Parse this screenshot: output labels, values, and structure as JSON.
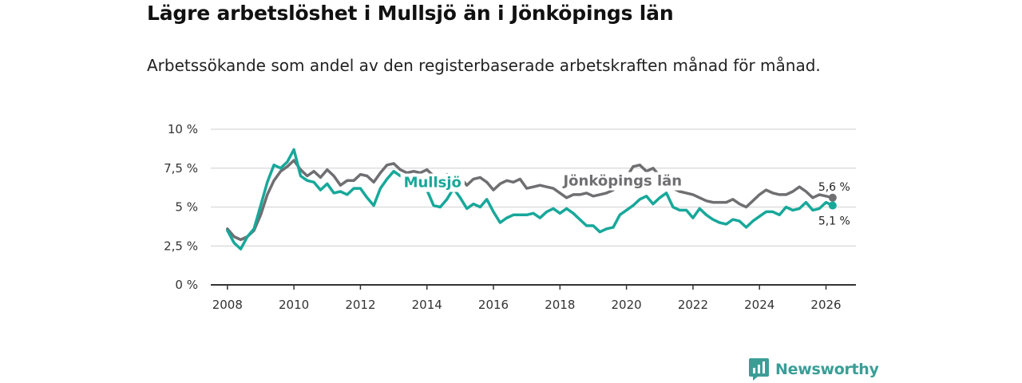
{
  "title": "Lägre arbetslöshet i Mullsjö än i Jönköpings län",
  "subtitle": "Arbetssökande som andel av den registerbaserade arbetskraften månad för månad.",
  "brand": "Newsworthy",
  "colors": {
    "lan": "#6f6f72",
    "mullsjo": "#17a89a",
    "grid": "#d8d8d8",
    "axis": "#333333",
    "brand": "#3a9e96"
  },
  "chart_data": {
    "type": "line",
    "title": "Lägre arbetslöshet i Mullsjö än i Jönköpings län",
    "xlabel": "",
    "ylabel": "",
    "xlim": [
      2007.5,
      2026.9
    ],
    "ylim": [
      0,
      10
    ],
    "y_ticks": [
      0,
      2.5,
      5,
      7.5,
      10
    ],
    "y_tick_labels": [
      "0 %",
      "2,5 %",
      "5 %",
      "7,5 %",
      "10 %"
    ],
    "x_ticks": [
      2008,
      2010,
      2012,
      2014,
      2016,
      2018,
      2020,
      2022,
      2024,
      2026
    ],
    "x_tick_labels": [
      "2008",
      "2010",
      "2012",
      "2014",
      "2016",
      "2018",
      "2020",
      "2022",
      "2024",
      "2026"
    ],
    "grid": true,
    "series": [
      {
        "name": "Jönköpings län",
        "color": "#6f6f72",
        "end_label": "5,6 %",
        "x": [
          2008.0,
          2008.2,
          2008.4,
          2008.6,
          2008.8,
          2009.0,
          2009.2,
          2009.4,
          2009.6,
          2009.8,
          2010.0,
          2010.2,
          2010.4,
          2010.6,
          2010.8,
          2011.0,
          2011.2,
          2011.4,
          2011.6,
          2011.8,
          2012.0,
          2012.2,
          2012.4,
          2012.6,
          2012.8,
          2013.0,
          2013.2,
          2013.4,
          2013.6,
          2013.8,
          2014.0,
          2014.2,
          2014.4,
          2014.6,
          2014.8,
          2015.0,
          2015.2,
          2015.4,
          2015.6,
          2015.8,
          2016.0,
          2016.2,
          2016.4,
          2016.6,
          2016.8,
          2017.0,
          2017.2,
          2017.4,
          2017.6,
          2017.8,
          2018.0,
          2018.2,
          2018.4,
          2018.6,
          2018.8,
          2019.0,
          2019.2,
          2019.4,
          2019.6,
          2019.8,
          2020.0,
          2020.2,
          2020.4,
          2020.6,
          2020.8,
          2021.0,
          2021.2,
          2021.4,
          2021.6,
          2021.8,
          2022.0,
          2022.2,
          2022.4,
          2022.6,
          2022.8,
          2023.0,
          2023.2,
          2023.4,
          2023.6,
          2023.8,
          2024.0,
          2024.2,
          2024.4,
          2024.6,
          2024.8,
          2025.0,
          2025.2,
          2025.4,
          2025.6,
          2025.8,
          2026.0,
          2026.2
        ],
        "values": [
          3.6,
          3.1,
          2.9,
          3.1,
          3.5,
          4.5,
          5.8,
          6.7,
          7.3,
          7.6,
          8.0,
          7.4,
          7.0,
          7.3,
          6.9,
          7.4,
          7.0,
          6.4,
          6.7,
          6.7,
          7.1,
          7.0,
          6.6,
          7.2,
          7.7,
          7.8,
          7.4,
          7.2,
          7.3,
          7.2,
          7.4,
          7.0,
          6.6,
          7.1,
          6.7,
          6.9,
          6.4,
          6.8,
          6.9,
          6.6,
          6.1,
          6.5,
          6.7,
          6.6,
          6.8,
          6.2,
          6.3,
          6.4,
          6.3,
          6.2,
          5.9,
          5.6,
          5.8,
          5.8,
          5.9,
          5.7,
          5.8,
          5.9,
          6.1,
          6.5,
          6.9,
          7.6,
          7.7,
          7.3,
          7.5,
          7.0,
          6.3,
          6.2,
          6.0,
          5.9,
          5.8,
          5.6,
          5.4,
          5.3,
          5.3,
          5.3,
          5.5,
          5.2,
          5.0,
          5.4,
          5.8,
          6.1,
          5.9,
          5.8,
          5.8,
          6.0,
          6.3,
          6.0,
          5.6,
          5.8,
          5.7,
          5.6
        ]
      },
      {
        "name": "Mullsjö",
        "color": "#17a89a",
        "end_label": "5,1 %",
        "x": [
          2008.0,
          2008.2,
          2008.4,
          2008.6,
          2008.8,
          2009.0,
          2009.2,
          2009.4,
          2009.6,
          2009.8,
          2010.0,
          2010.2,
          2010.4,
          2010.6,
          2010.8,
          2011.0,
          2011.2,
          2011.4,
          2011.6,
          2011.8,
          2012.0,
          2012.2,
          2012.4,
          2012.6,
          2012.8,
          2013.0,
          2013.2,
          2013.4,
          2013.6,
          2013.8,
          2014.0,
          2014.2,
          2014.4,
          2014.6,
          2014.8,
          2015.0,
          2015.2,
          2015.4,
          2015.6,
          2015.8,
          2016.0,
          2016.2,
          2016.4,
          2016.6,
          2016.8,
          2017.0,
          2017.2,
          2017.4,
          2017.6,
          2017.8,
          2018.0,
          2018.2,
          2018.4,
          2018.6,
          2018.8,
          2019.0,
          2019.2,
          2019.4,
          2019.6,
          2019.8,
          2020.0,
          2020.2,
          2020.4,
          2020.6,
          2020.8,
          2021.0,
          2021.2,
          2021.4,
          2021.6,
          2021.8,
          2022.0,
          2022.2,
          2022.4,
          2022.6,
          2022.8,
          2023.0,
          2023.2,
          2023.4,
          2023.6,
          2023.8,
          2024.0,
          2024.2,
          2024.4,
          2024.6,
          2024.8,
          2025.0,
          2025.2,
          2025.4,
          2025.6,
          2025.8,
          2026.0,
          2026.2
        ],
        "values": [
          3.5,
          2.7,
          2.3,
          3.1,
          3.6,
          5.1,
          6.6,
          7.7,
          7.5,
          7.9,
          8.7,
          7.0,
          6.7,
          6.6,
          6.1,
          6.5,
          5.9,
          6.0,
          5.8,
          6.2,
          6.2,
          5.6,
          5.1,
          6.2,
          6.8,
          7.3,
          7.0,
          6.8,
          6.5,
          6.3,
          6.1,
          5.1,
          5.0,
          5.5,
          6.2,
          5.6,
          4.9,
          5.2,
          5.0,
          5.5,
          4.7,
          4.0,
          4.3,
          4.5,
          4.5,
          4.5,
          4.6,
          4.3,
          4.7,
          4.9,
          4.6,
          4.9,
          4.6,
          4.2,
          3.8,
          3.8,
          3.4,
          3.6,
          3.7,
          4.5,
          4.8,
          5.1,
          5.5,
          5.7,
          5.2,
          5.6,
          5.9,
          5.0,
          4.8,
          4.8,
          4.3,
          4.9,
          4.5,
          4.2,
          4.0,
          3.9,
          4.2,
          4.1,
          3.7,
          4.1,
          4.4,
          4.7,
          4.7,
          4.5,
          5.0,
          4.8,
          4.9,
          5.3,
          4.8,
          4.9,
          5.3,
          5.1
        ]
      }
    ]
  }
}
